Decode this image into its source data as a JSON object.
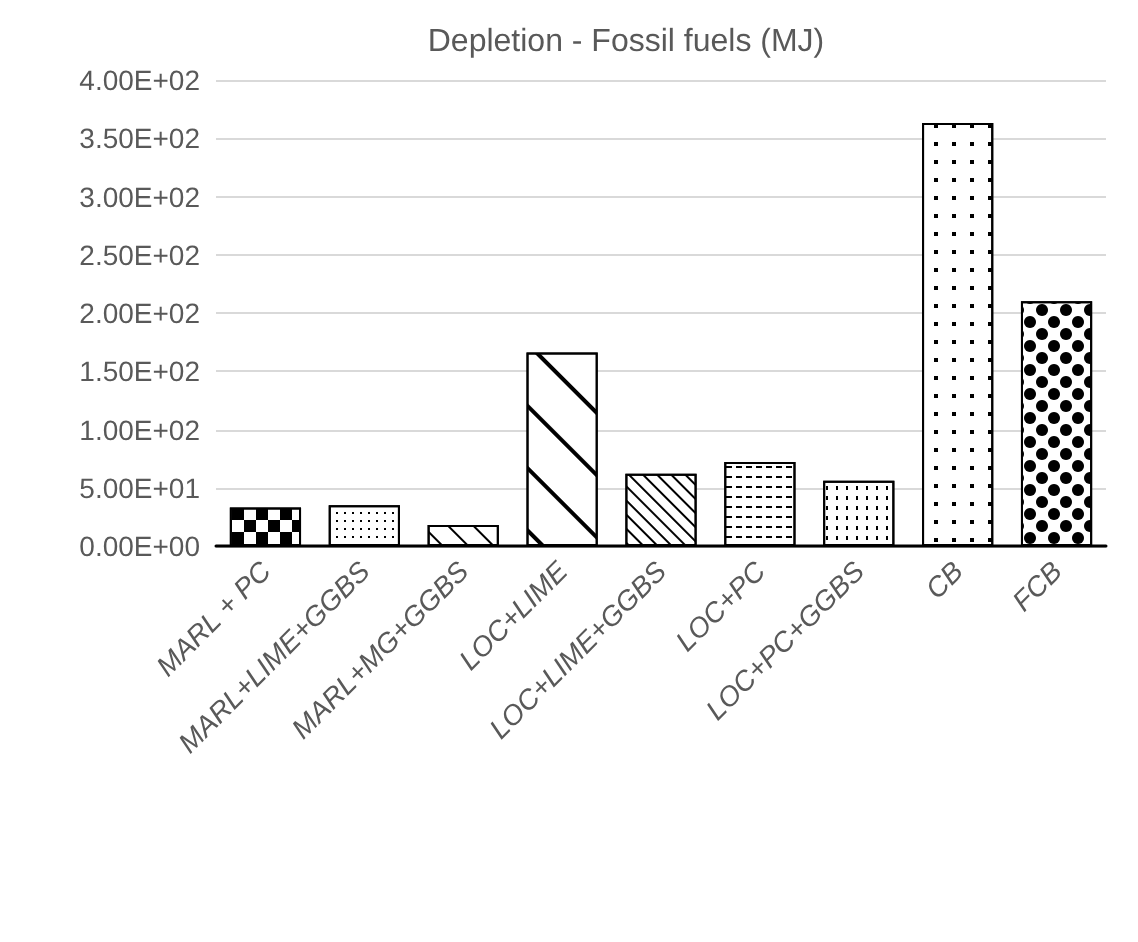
{
  "chart_data": {
    "type": "bar",
    "title": "Depletion - Fossil fuels (MJ)",
    "categories": [
      "MARL + PC",
      "MARL+LIME+GGBS",
      "MARL+MG+GGBS",
      "LOC+LIME",
      "LOC+LIME+GGBS",
      "LOC+PC",
      "LOC+PC+GGBS",
      "CB",
      "FCB"
    ],
    "values": [
      33,
      35,
      18,
      166,
      62,
      72,
      56,
      363,
      210
    ],
    "colors": [
      "#ffffff",
      "#ffffff",
      "#ffffff",
      "#ffffff",
      "#ffffff",
      "#ffffff",
      "#ffffff",
      "#ffffff",
      "#ffffff"
    ],
    "ylim": [
      0,
      400
    ],
    "yticks": [
      {
        "value": 0,
        "label": "0.00E+00"
      },
      {
        "value": 50,
        "label": "5.00E+01"
      },
      {
        "value": 100,
        "label": "1.00E+02"
      },
      {
        "value": 150,
        "label": "1.50E+02"
      },
      {
        "value": 200,
        "label": "2.00E+02"
      },
      {
        "value": 250,
        "label": "2.50E+02"
      },
      {
        "value": 300,
        "label": "3.00E+02"
      },
      {
        "value": 350,
        "label": "3.50E+02"
      },
      {
        "value": 400,
        "label": "4.00E+02"
      }
    ],
    "grid": "y"
  }
}
